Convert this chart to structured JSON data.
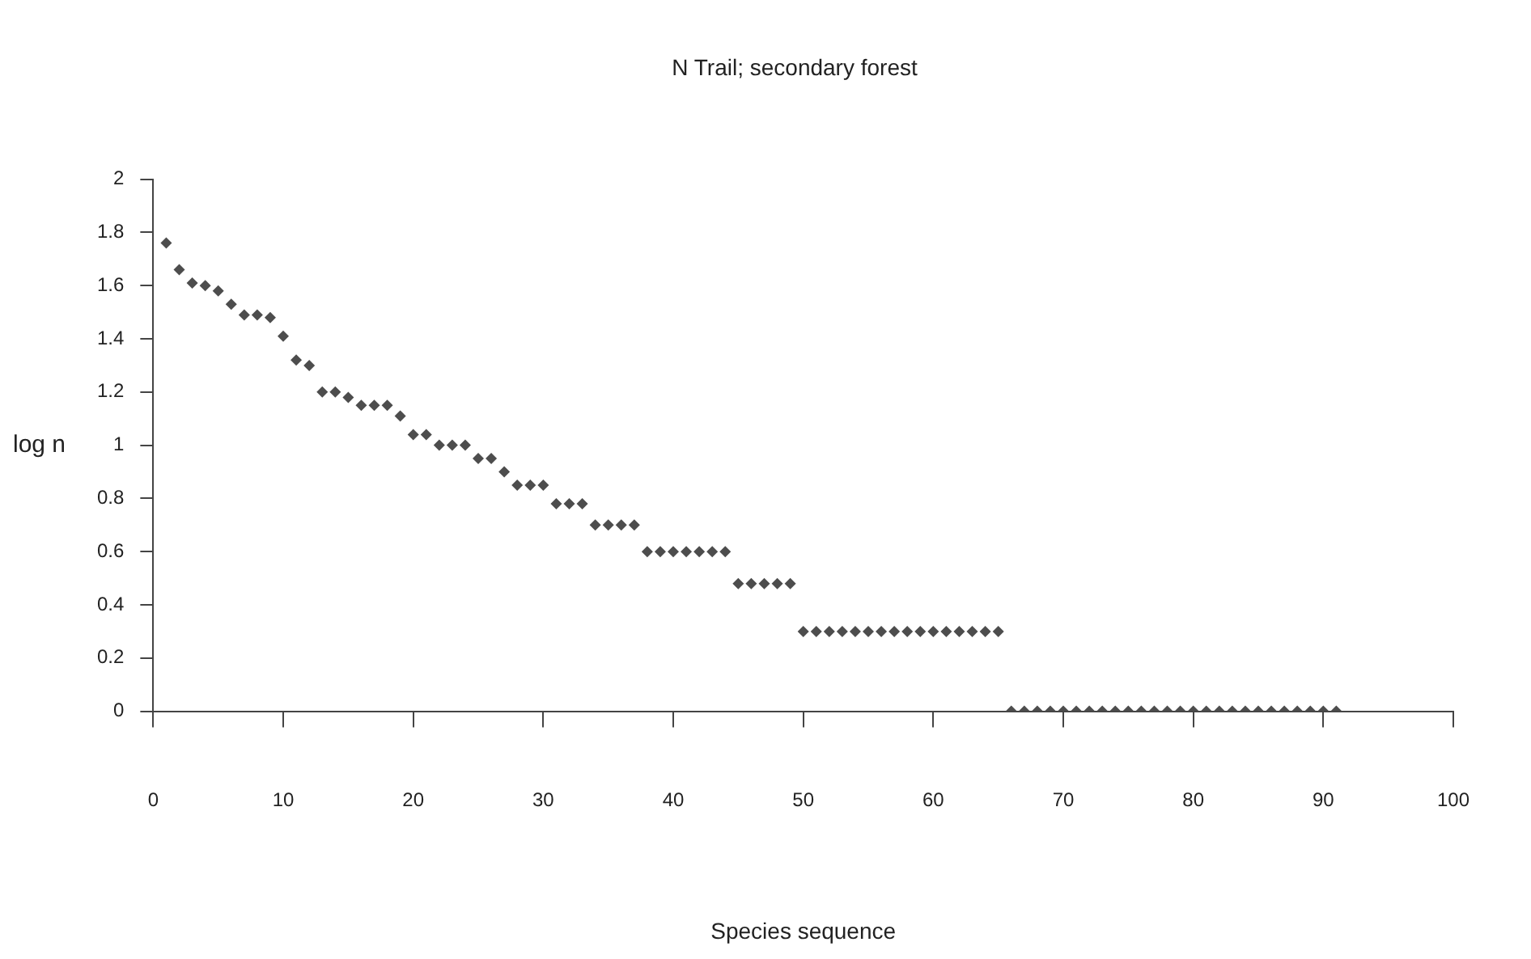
{
  "chart_data": {
    "type": "scatter",
    "title": "N Trail; secondary forest",
    "xlabel": "Species sequence",
    "ylabel": "log n",
    "x": [
      1,
      2,
      3,
      4,
      5,
      6,
      7,
      8,
      9,
      10,
      11,
      12,
      13,
      14,
      15,
      16,
      17,
      18,
      19,
      20,
      21,
      22,
      23,
      24,
      25,
      26,
      27,
      28,
      29,
      30,
      31,
      32,
      33,
      34,
      35,
      36,
      37,
      38,
      39,
      40,
      41,
      42,
      43,
      44,
      45,
      46,
      47,
      48,
      49,
      50,
      51,
      52,
      53,
      54,
      55,
      56,
      57,
      58,
      59,
      60,
      61,
      62,
      63,
      64,
      65,
      66,
      67,
      68,
      69,
      70,
      71,
      72,
      73,
      74,
      75,
      76,
      77,
      78,
      79,
      80,
      81,
      82,
      83,
      84,
      85,
      86,
      87,
      88,
      89,
      90,
      91
    ],
    "values": [
      1.76,
      1.66,
      1.61,
      1.6,
      1.58,
      1.53,
      1.49,
      1.49,
      1.48,
      1.41,
      1.32,
      1.3,
      1.2,
      1.2,
      1.18,
      1.15,
      1.15,
      1.15,
      1.11,
      1.04,
      1.04,
      1.0,
      1.0,
      1.0,
      0.95,
      0.95,
      0.9,
      0.85,
      0.85,
      0.85,
      0.78,
      0.78,
      0.78,
      0.7,
      0.7,
      0.7,
      0.7,
      0.6,
      0.6,
      0.6,
      0.6,
      0.6,
      0.6,
      0.6,
      0.48,
      0.48,
      0.48,
      0.48,
      0.48,
      0.3,
      0.3,
      0.3,
      0.3,
      0.3,
      0.3,
      0.3,
      0.3,
      0.3,
      0.3,
      0.3,
      0.3,
      0.3,
      0.3,
      0.3,
      0.3,
      0,
      0,
      0,
      0,
      0,
      0,
      0,
      0,
      0,
      0,
      0,
      0,
      0,
      0,
      0,
      0,
      0,
      0,
      0,
      0,
      0,
      0,
      0,
      0,
      0,
      0
    ],
    "color": "#4d4d4d",
    "marker": "diamond",
    "xlim": [
      0,
      100
    ],
    "xticks": [
      0,
      10,
      20,
      30,
      40,
      50,
      60,
      70,
      80,
      90,
      100
    ],
    "ylim": [
      0,
      2
    ],
    "yticks": [
      0,
      0.2,
      0.4,
      0.6,
      0.8,
      1,
      1.2,
      1.4,
      1.6,
      1.8,
      2
    ],
    "grid": false,
    "legend": false
  }
}
